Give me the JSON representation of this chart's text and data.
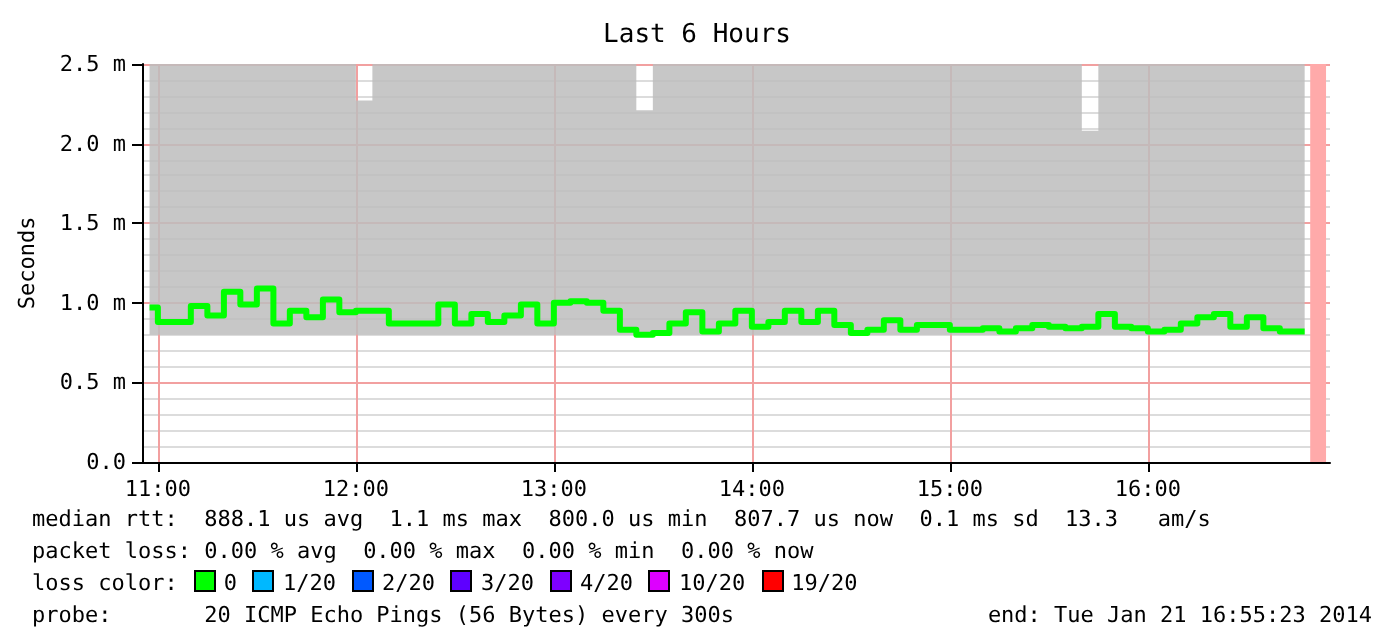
{
  "chart_data": {
    "type": "step",
    "title": "Last 6 Hours",
    "ylabel": "Seconds",
    "x": [
      10.958,
      11.042,
      11.125,
      11.208,
      11.292,
      11.375,
      11.458,
      11.542,
      11.625,
      11.708,
      11.792,
      11.875,
      11.958,
      12.042,
      12.125,
      12.208,
      12.292,
      12.375,
      12.458,
      12.542,
      12.625,
      12.708,
      12.792,
      12.875,
      12.958,
      13.042,
      13.125,
      13.208,
      13.292,
      13.375,
      13.458,
      13.542,
      13.625,
      13.708,
      13.792,
      13.875,
      13.958,
      14.042,
      14.125,
      14.208,
      14.292,
      14.375,
      14.458,
      14.542,
      14.625,
      14.708,
      14.792,
      14.875,
      14.958,
      15.042,
      15.125,
      15.208,
      15.292,
      15.375,
      15.458,
      15.542,
      15.625,
      15.708,
      15.792,
      15.875,
      15.958,
      16.042,
      16.125,
      16.208,
      16.292,
      16.375,
      16.458,
      16.542,
      16.625,
      16.708,
      16.792
    ],
    "series": [
      {
        "color": "#00ff00",
        "values": [
          0.97,
          0.88,
          0.88,
          0.98,
          0.92,
          1.07,
          0.99,
          1.09,
          0.87,
          0.95,
          0.91,
          1.02,
          0.94,
          0.95,
          0.95,
          0.87,
          0.87,
          0.87,
          0.99,
          0.87,
          0.93,
          0.88,
          0.92,
          0.99,
          0.87,
          1.0,
          1.01,
          1.0,
          0.95,
          0.83,
          0.8,
          0.81,
          0.87,
          0.94,
          0.82,
          0.87,
          0.95,
          0.85,
          0.88,
          0.95,
          0.88,
          0.95,
          0.86,
          0.81,
          0.83,
          0.89,
          0.83,
          0.86,
          0.86,
          0.83,
          0.83,
          0.84,
          0.82,
          0.84,
          0.86,
          0.85,
          0.84,
          0.85,
          0.93,
          0.85,
          0.84,
          0.82,
          0.83,
          0.87,
          0.91,
          0.93,
          0.85,
          0.91,
          0.84,
          0.82,
          0.82
        ],
        "lower": [
          0.8,
          0.8,
          0.8,
          0.8,
          0.8,
          0.8,
          0.8,
          0.8,
          0.8,
          0.8,
          0.8,
          0.8,
          0.8,
          0.8,
          0.8,
          0.8,
          0.8,
          0.8,
          0.8,
          0.8,
          0.8,
          0.8,
          0.8,
          0.8,
          0.8,
          0.8,
          0.8,
          0.8,
          0.8,
          0.8,
          0.8,
          0.8,
          0.8,
          0.8,
          0.8,
          0.8,
          0.8,
          0.8,
          0.8,
          0.8,
          0.8,
          0.8,
          0.8,
          0.8,
          0.8,
          0.8,
          0.8,
          0.8,
          0.8,
          0.8,
          0.8,
          0.8,
          0.8,
          0.8,
          0.8,
          0.8,
          0.8,
          0.8,
          0.8,
          0.8,
          0.8,
          0.8,
          0.8,
          0.8,
          0.8,
          0.8,
          0.8,
          0.8,
          0.8,
          0.8,
          0.8
        ],
        "upper": [
          2.5,
          2.5,
          2.5,
          2.5,
          2.5,
          2.5,
          2.5,
          2.5,
          2.5,
          2.5,
          2.5,
          2.5,
          2.5,
          2.27,
          2.5,
          2.5,
          2.5,
          2.5,
          2.5,
          2.5,
          2.5,
          2.5,
          2.5,
          2.5,
          2.5,
          2.5,
          2.5,
          2.5,
          2.5,
          2.5,
          2.21,
          2.5,
          2.5,
          2.5,
          2.5,
          2.5,
          2.5,
          2.5,
          2.5,
          2.5,
          2.5,
          2.5,
          2.5,
          2.5,
          2.5,
          2.5,
          2.5,
          2.5,
          2.5,
          2.5,
          2.5,
          2.5,
          2.5,
          2.5,
          2.5,
          2.5,
          2.5,
          2.08,
          2.5,
          2.5,
          2.5,
          2.5,
          2.5,
          2.5,
          2.5,
          2.5,
          2.5,
          2.5,
          2.5,
          2.5,
          2.5
        ]
      }
    ],
    "xlim": [
      10.92,
      16.92
    ],
    "xticks": [
      {
        "value": 11,
        "label": "11:00"
      },
      {
        "value": 12,
        "label": "12:00"
      },
      {
        "value": 13,
        "label": "13:00"
      },
      {
        "value": 14,
        "label": "14:00"
      },
      {
        "value": 15,
        "label": "15:00"
      },
      {
        "value": 16,
        "label": "16:00"
      }
    ],
    "ylim": [
      0,
      2.5
    ],
    "yticks": [
      {
        "value": 0,
        "label": "0.0"
      },
      {
        "value": 0.5,
        "label": "0.5 m"
      },
      {
        "value": 1,
        "label": "1.0 m"
      },
      {
        "value": 1.5,
        "label": "1.5 m"
      },
      {
        "value": 2,
        "label": "2.0 m"
      },
      {
        "value": 2.5,
        "label": "2.5 m"
      }
    ],
    "grid": true,
    "bands": [
      {
        "axis": "x",
        "from": 16.82,
        "to": 16.9,
        "color": "#ffaaaa"
      }
    ],
    "annotations": [
      "median rtt:  888.1 us avg  1.1 ms max  800.0 us min  807.7 us now  0.1 ms sd  13.3   am/s",
      "packet loss: 0.00 % avg  0.00 % max  0.00 % min  0.00 % now",
      "loss color:  0  1/20  2/20  3/20  4/20  10/20  19/20",
      "probe:       20 ICMP Echo Pings (56 Bytes) every 300s",
      "end: Tue Jan 21 16:55:23 2014"
    ]
  }
}
